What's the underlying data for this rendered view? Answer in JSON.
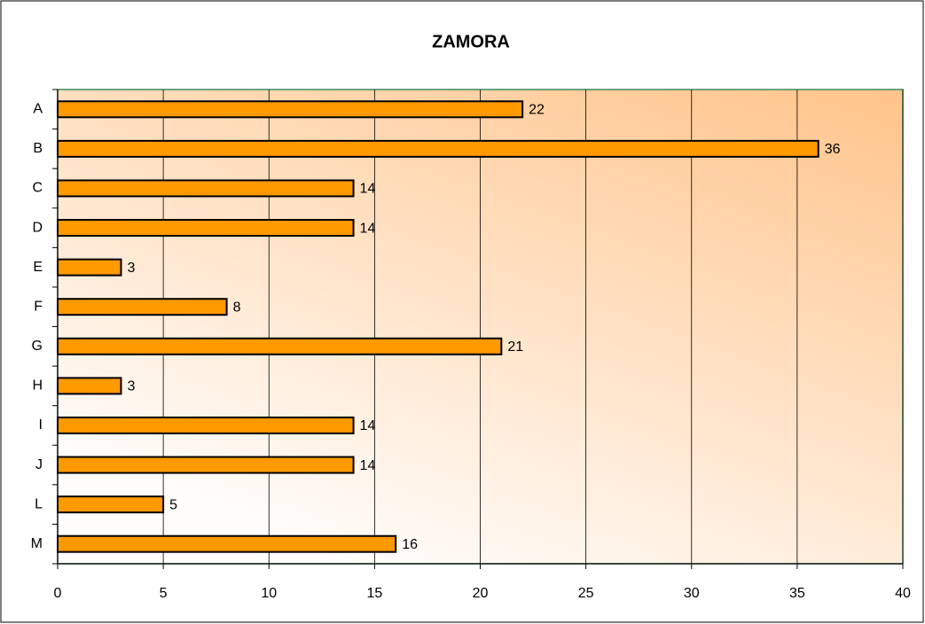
{
  "chart_data": {
    "type": "bar",
    "orientation": "horizontal",
    "title": "ZAMORA",
    "categories": [
      "A",
      "B",
      "C",
      "D",
      "E",
      "F",
      "G",
      "H",
      "I",
      "J",
      "L",
      "M"
    ],
    "values": [
      22,
      36,
      14,
      14,
      3,
      8,
      21,
      3,
      14,
      14,
      5,
      16
    ],
    "color": "#ff9900",
    "xlim": [
      0,
      40
    ],
    "xticks": [
      0,
      5,
      10,
      15,
      20,
      25,
      30,
      35,
      40
    ],
    "grid": true
  }
}
